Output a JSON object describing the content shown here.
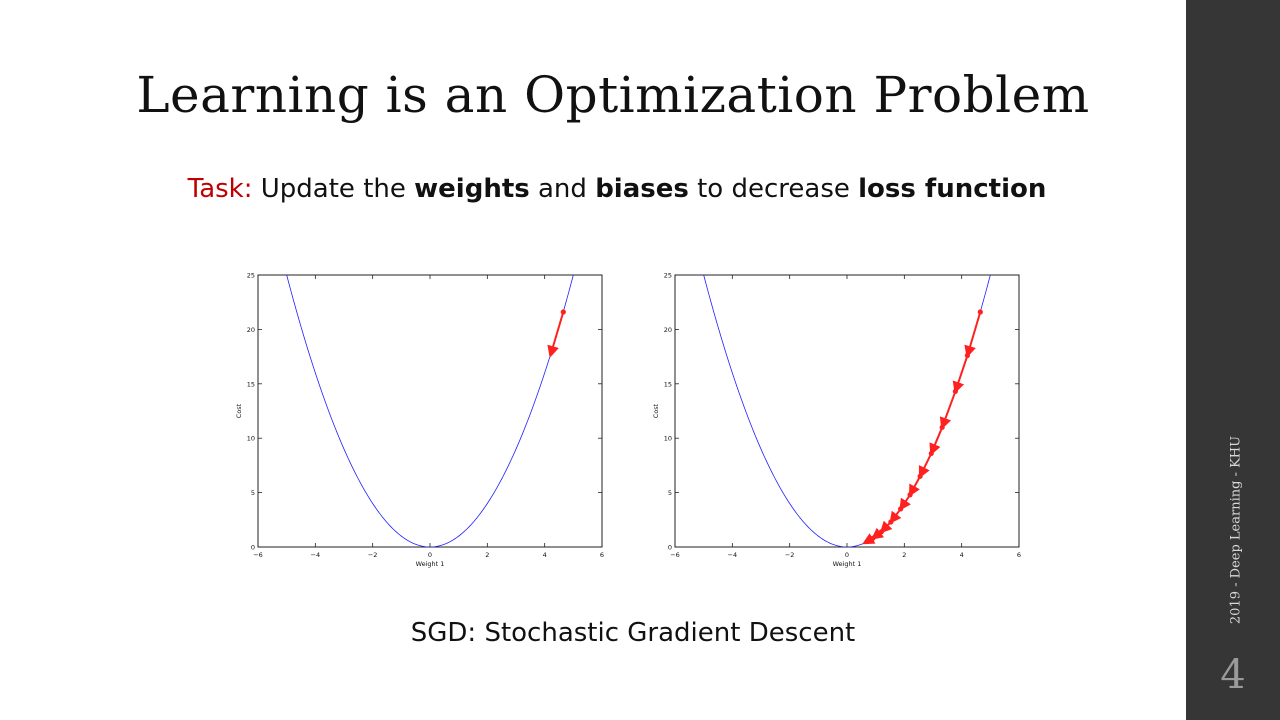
{
  "slide": {
    "title": "Learning is an Optimization Problem",
    "task": {
      "label": "Task:",
      "text_1": "Update the",
      "bold_1": "weights",
      "text_2": "and",
      "bold_2": "biases",
      "text_3": "to decrease",
      "bold_3": "loss function"
    },
    "caption": "SGD: Stochastic Gradient Descent",
    "footer": "2019 - Deep Learning - KHU",
    "page_number": "4"
  },
  "colors": {
    "sidebar": "#363636",
    "task_label": "#c00000",
    "curve": "#2020ff",
    "descent": "#ff2020"
  },
  "chart_data": [
    {
      "type": "line",
      "title": "",
      "xlabel": "Weight 1",
      "ylabel": "Cost",
      "xlim": [
        -6,
        6
      ],
      "ylim": [
        0,
        25
      ],
      "xticks": [
        -6,
        -4,
        -2,
        0,
        2,
        4,
        6
      ],
      "xtick_labels": [
        "−6",
        "−4",
        "−2",
        "0",
        "2",
        "4",
        "6"
      ],
      "yticks": [
        0,
        5,
        10,
        15,
        20,
        25
      ],
      "ytick_labels": [
        "0",
        "5",
        "10",
        "15",
        "20",
        "25"
      ],
      "grid": false,
      "series": [
        {
          "kind": "curve",
          "function": "x^2",
          "x_range": [
            -5,
            5
          ]
        },
        {
          "kind": "descent",
          "x": [
            4.65,
            4.2
          ],
          "y": [
            21.6,
            17.6
          ]
        }
      ]
    },
    {
      "type": "line",
      "title": "",
      "xlabel": "Weight 1",
      "ylabel": "Cost",
      "xlim": [
        -6,
        6
      ],
      "ylim": [
        0,
        25
      ],
      "xticks": [
        -6,
        -4,
        -2,
        0,
        2,
        4,
        6
      ],
      "xtick_labels": [
        "−6",
        "−4",
        "−2",
        "0",
        "2",
        "4",
        "6"
      ],
      "yticks": [
        0,
        5,
        10,
        15,
        20,
        25
      ],
      "ytick_labels": [
        "0",
        "5",
        "10",
        "15",
        "20",
        "25"
      ],
      "grid": false,
      "series": [
        {
          "kind": "curve",
          "function": "x^2",
          "x_range": [
            -5,
            5
          ]
        },
        {
          "kind": "descent",
          "x": [
            4.65,
            4.2,
            3.78,
            3.32,
            2.94,
            2.55,
            2.2,
            1.87,
            1.53,
            1.2,
            0.9,
            0.6
          ],
          "y": [
            21.6,
            17.6,
            14.3,
            11.0,
            8.6,
            6.5,
            4.8,
            3.5,
            2.3,
            1.4,
            0.8,
            0.36
          ]
        }
      ]
    }
  ]
}
